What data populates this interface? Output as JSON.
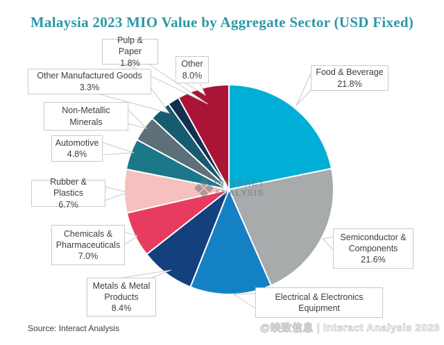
{
  "title": "Malaysia 2023 MIO Value by Aggregate Sector (USD Fixed)",
  "source": "Source: Interact Analysis",
  "watermark": {
    "center_icon": "interact-analysis-logo",
    "center_line1": "INTERACT",
    "center_line2": "ANALYSIS",
    "bottom_right": "@映致信息 | Interact Analysis 2023"
  },
  "colors": {
    "title_text": "#2b97a7",
    "label_text": "#3d3d3d",
    "label_border": "#c9c9c9",
    "slice_divider": "#ffffff"
  },
  "chart_data": {
    "type": "pie",
    "title": "Malaysia 2023 MIO Value by Aggregate Sector (USD Fixed)",
    "direction": "clockwise",
    "start_angle_deg": 0,
    "legend_position": "none",
    "labels_style": "external callout boxes with leader lines",
    "slices": [
      {
        "label": "Food & Beverage",
        "pct_label": "21.8%",
        "value": 21.8,
        "color": "#00aed6"
      },
      {
        "label": "Semiconductor & Components",
        "pct_label": "21.6%",
        "value": 21.6,
        "color": "#a7abac"
      },
      {
        "label": "Electrical & Electronics Equipment",
        "pct_label": "",
        "value": 12.6,
        "color": "#1581c5"
      },
      {
        "label": "Metals & Metal Products",
        "pct_label": "8.4%",
        "value": 8.4,
        "color": "#14407e"
      },
      {
        "label": "Chemicals & Pharmaceuticals",
        "pct_label": "7.0%",
        "value": 7.0,
        "color": "#e73c60"
      },
      {
        "label": "Rubber & Plastics",
        "pct_label": "6.7%",
        "value": 6.7,
        "color": "#f5c0bf"
      },
      {
        "label": "Automotive",
        "pct_label": "4.8%",
        "value": 4.8,
        "color": "#1b7889"
      },
      {
        "label": "Non-Metallic Minerals",
        "pct_label": "",
        "value": 4.0,
        "color": "#5d6f78"
      },
      {
        "label": "Other Manufactured Goods",
        "pct_label": "3.3%",
        "value": 3.3,
        "color": "#165b70"
      },
      {
        "label": "Pulp & Paper",
        "pct_label": "1.8%",
        "value": 1.8,
        "color": "#132f52"
      },
      {
        "label": "Other",
        "pct_label": "8.0%",
        "value": 8.0,
        "color": "#aa1436"
      }
    ]
  }
}
